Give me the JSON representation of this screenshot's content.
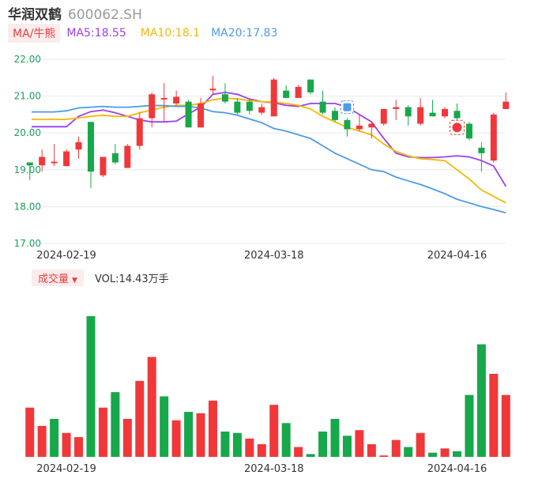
{
  "header": {
    "name": "华润双鹤",
    "code": "600062.SH"
  },
  "indicators": {
    "tag": "MA/牛熊",
    "ma5": "MA5:18.55",
    "ma10": "MA10:18.1",
    "ma20": "MA20:17.83"
  },
  "volume_bar": {
    "tag": "成交量",
    "text": "VOL:14.43万手"
  },
  "colors": {
    "up": "#f0383a",
    "down": "#16a84a",
    "ma5": "#9b3ff0",
    "ma10": "#f5b800",
    "ma20": "#4c9be8",
    "grid": "#e8e8e8",
    "axis_text": "#1a9f5a"
  },
  "chart_data": [
    {
      "type": "candlestick",
      "title": "",
      "ylim": [
        17.0,
        22.0
      ],
      "yticks": [
        "22.00",
        "21.00",
        "20.00",
        "19.00",
        "18.00",
        "17.00"
      ],
      "xticks": [
        "2024-02-19",
        "2024-03-18",
        "2024-04-16"
      ],
      "xtick_index": [
        3,
        20,
        35
      ],
      "candles": [
        {
          "o": 19.2,
          "c": 19.12,
          "h": 19.2,
          "l": 18.72
        },
        {
          "o": 19.12,
          "c": 19.35,
          "h": 19.55,
          "l": 18.95
        },
        {
          "o": 19.2,
          "c": 19.22,
          "h": 19.7,
          "l": 19.1
        },
        {
          "o": 19.1,
          "c": 19.5,
          "h": 19.55,
          "l": 19.1
        },
        {
          "o": 19.55,
          "c": 19.75,
          "h": 19.9,
          "l": 19.3
        },
        {
          "o": 20.3,
          "c": 18.95,
          "h": 20.3,
          "l": 18.5
        },
        {
          "o": 18.85,
          "c": 19.35,
          "h": 19.35,
          "l": 18.8
        },
        {
          "o": 19.45,
          "c": 19.2,
          "h": 19.7,
          "l": 19.15
        },
        {
          "o": 19.05,
          "c": 19.65,
          "h": 19.7,
          "l": 19.05
        },
        {
          "o": 19.65,
          "c": 20.4,
          "h": 20.55,
          "l": 19.55
        },
        {
          "o": 20.4,
          "c": 21.05,
          "h": 21.1,
          "l": 20.15
        },
        {
          "o": 20.95,
          "c": 20.95,
          "h": 21.35,
          "l": 20.3
        },
        {
          "o": 20.8,
          "c": 20.98,
          "h": 21.15,
          "l": 20.75
        },
        {
          "o": 20.85,
          "c": 20.15,
          "h": 20.9,
          "l": 20.15
        },
        {
          "o": 20.15,
          "c": 20.8,
          "h": 20.95,
          "l": 20.15
        },
        {
          "o": 21.2,
          "c": 21.2,
          "h": 21.55,
          "l": 21.05
        },
        {
          "o": 21.05,
          "c": 20.85,
          "h": 21.35,
          "l": 20.8
        },
        {
          "o": 20.85,
          "c": 20.55,
          "h": 20.95,
          "l": 20.5
        },
        {
          "o": 20.85,
          "c": 20.6,
          "h": 20.9,
          "l": 20.5
        },
        {
          "o": 20.55,
          "c": 20.7,
          "h": 20.8,
          "l": 20.5
        },
        {
          "o": 20.45,
          "c": 21.45,
          "h": 21.5,
          "l": 20.45
        },
        {
          "o": 21.15,
          "c": 20.95,
          "h": 21.3,
          "l": 20.95
        },
        {
          "o": 20.95,
          "c": 21.25,
          "h": 21.3,
          "l": 20.95
        },
        {
          "o": 21.45,
          "c": 21.1,
          "h": 21.45,
          "l": 21.05
        },
        {
          "o": 20.85,
          "c": 20.55,
          "h": 21.15,
          "l": 20.5
        },
        {
          "o": 20.6,
          "c": 20.35,
          "h": 20.7,
          "l": 20.3
        },
        {
          "o": 20.35,
          "c": 20.1,
          "h": 20.4,
          "l": 19.9
        },
        {
          "o": 20.1,
          "c": 20.2,
          "h": 20.5,
          "l": 20.05
        },
        {
          "o": 20.15,
          "c": 20.25,
          "h": 20.3,
          "l": 19.85
        },
        {
          "o": 20.25,
          "c": 20.65,
          "h": 20.65,
          "l": 20.2
        },
        {
          "o": 20.65,
          "c": 20.7,
          "h": 20.9,
          "l": 20.35
        },
        {
          "o": 20.7,
          "c": 20.45,
          "h": 20.75,
          "l": 20.2
        },
        {
          "o": 20.25,
          "c": 20.7,
          "h": 20.95,
          "l": 20.2
        },
        {
          "o": 20.55,
          "c": 20.45,
          "h": 20.9,
          "l": 20.45
        },
        {
          "o": 20.45,
          "c": 20.65,
          "h": 20.7,
          "l": 20.4
        },
        {
          "o": 20.6,
          "c": 20.4,
          "h": 20.8,
          "l": 20.35
        },
        {
          "o": 20.25,
          "c": 19.85,
          "h": 20.3,
          "l": 19.8
        },
        {
          "o": 19.6,
          "c": 19.45,
          "h": 19.75,
          "l": 18.95
        },
        {
          "o": 19.25,
          "c": 20.5,
          "h": 20.55,
          "l": 19.2
        },
        {
          "o": 20.65,
          "c": 20.85,
          "h": 21.1,
          "l": 20.65
        }
      ],
      "series": [
        {
          "name": "MA5",
          "values": [
            20.17,
            20.17,
            20.17,
            20.17,
            20.45,
            20.58,
            20.62,
            20.55,
            20.45,
            20.35,
            20.3,
            20.3,
            20.32,
            20.52,
            20.7,
            21.05,
            21.1,
            21.05,
            20.92,
            20.85,
            20.82,
            20.75,
            20.72,
            20.8,
            20.8,
            20.8,
            20.7,
            20.5,
            20.3,
            19.85,
            19.45,
            19.35,
            19.33,
            19.33,
            19.35,
            19.38,
            19.35,
            19.25,
            19.1,
            18.55
          ]
        },
        {
          "name": "MA10",
          "values": [
            20.37,
            20.37,
            20.37,
            20.37,
            20.41,
            20.45,
            20.48,
            20.45,
            20.45,
            20.55,
            20.62,
            20.7,
            20.75,
            20.75,
            20.8,
            20.9,
            20.95,
            20.92,
            20.88,
            20.85,
            20.84,
            20.8,
            20.75,
            20.65,
            20.45,
            20.3,
            20.15,
            20.05,
            19.95,
            19.7,
            19.5,
            19.38,
            19.3,
            19.28,
            19.25,
            19.0,
            18.75,
            18.45,
            18.28,
            18.1
          ]
        },
        {
          "name": "MA20",
          "values": [
            20.57,
            20.57,
            20.57,
            20.6,
            20.68,
            20.7,
            20.72,
            20.7,
            20.7,
            20.72,
            20.75,
            20.74,
            20.72,
            20.72,
            20.68,
            20.58,
            20.55,
            20.48,
            20.38,
            20.28,
            20.12,
            20.05,
            19.95,
            19.85,
            19.65,
            19.45,
            19.3,
            19.15,
            19.0,
            18.95,
            18.8,
            18.7,
            18.6,
            18.48,
            18.35,
            18.2,
            18.1,
            18.0,
            17.92,
            17.83
          ]
        }
      ]
    },
    {
      "type": "bar",
      "title": "",
      "ylim": [
        0,
        100
      ],
      "xticks": [
        "2024-02-19",
        "2024-03-18",
        "2024-04-16"
      ],
      "values": [
        35,
        22,
        27,
        17,
        14,
        100,
        35,
        46,
        27,
        54,
        71,
        43,
        26,
        32,
        31,
        40,
        18,
        17,
        13,
        9,
        37,
        24,
        7,
        2,
        18,
        27,
        15,
        19,
        9,
        1,
        12,
        7,
        17,
        3,
        6,
        4,
        44,
        80,
        59,
        44
      ],
      "directions": [
        "up",
        "up",
        "down",
        "up",
        "up",
        "down",
        "up",
        "down",
        "up",
        "up",
        "up",
        "down",
        "up",
        "down",
        "up",
        "up",
        "down",
        "down",
        "up",
        "up",
        "up",
        "down",
        "up",
        "down",
        "down",
        "down",
        "down",
        "up",
        "up",
        "up",
        "up",
        "down",
        "up",
        "down",
        "up",
        "down",
        "down",
        "down",
        "up",
        "up"
      ]
    }
  ]
}
